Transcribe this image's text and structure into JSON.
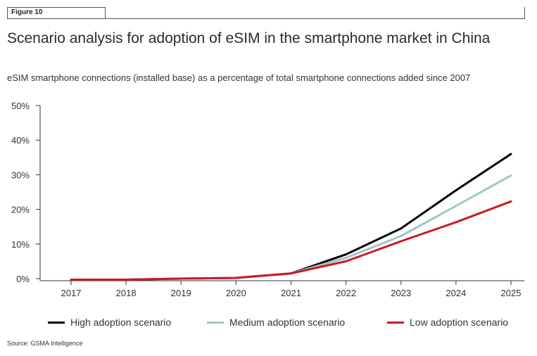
{
  "figure_tag": "Figure 10",
  "source": "Source: GSMA Intelligence",
  "colors": {
    "high": "#000000",
    "medium": "#9fc6c6",
    "low": "#cc1a1f",
    "axis": "#333333"
  },
  "chart_data": {
    "type": "line",
    "title": "Scenario analysis for adoption of eSIM in the smartphone market in China",
    "subtitle": "eSIM smartphone connections (installed base) as a percentage of total smartphone connections added since 2007",
    "xlabel": "",
    "ylabel": "",
    "x": [
      "2017",
      "2018",
      "2019",
      "2020",
      "2021",
      "2022",
      "2023",
      "2024",
      "2025"
    ],
    "ylim": [
      0,
      50
    ],
    "yticks": [
      "0%",
      "10%",
      "20%",
      "30%",
      "40%",
      "50%"
    ],
    "grid": false,
    "legend_position": "bottom",
    "series": [
      {
        "name": "High adoption scenario",
        "color_key": "high",
        "values": [
          -0.3,
          -0.3,
          0.0,
          0.2,
          1.5,
          7.0,
          14.5,
          25.5,
          36.0
        ]
      },
      {
        "name": "Medium adoption scenario",
        "color_key": "medium",
        "values": [
          -0.3,
          -0.3,
          0.0,
          0.2,
          1.5,
          6.0,
          12.3,
          21.0,
          29.8
        ]
      },
      {
        "name": "Low adoption scenario",
        "color_key": "low",
        "values": [
          -0.3,
          -0.3,
          0.0,
          0.2,
          1.5,
          5.0,
          10.8,
          16.3,
          22.3
        ]
      }
    ]
  }
}
